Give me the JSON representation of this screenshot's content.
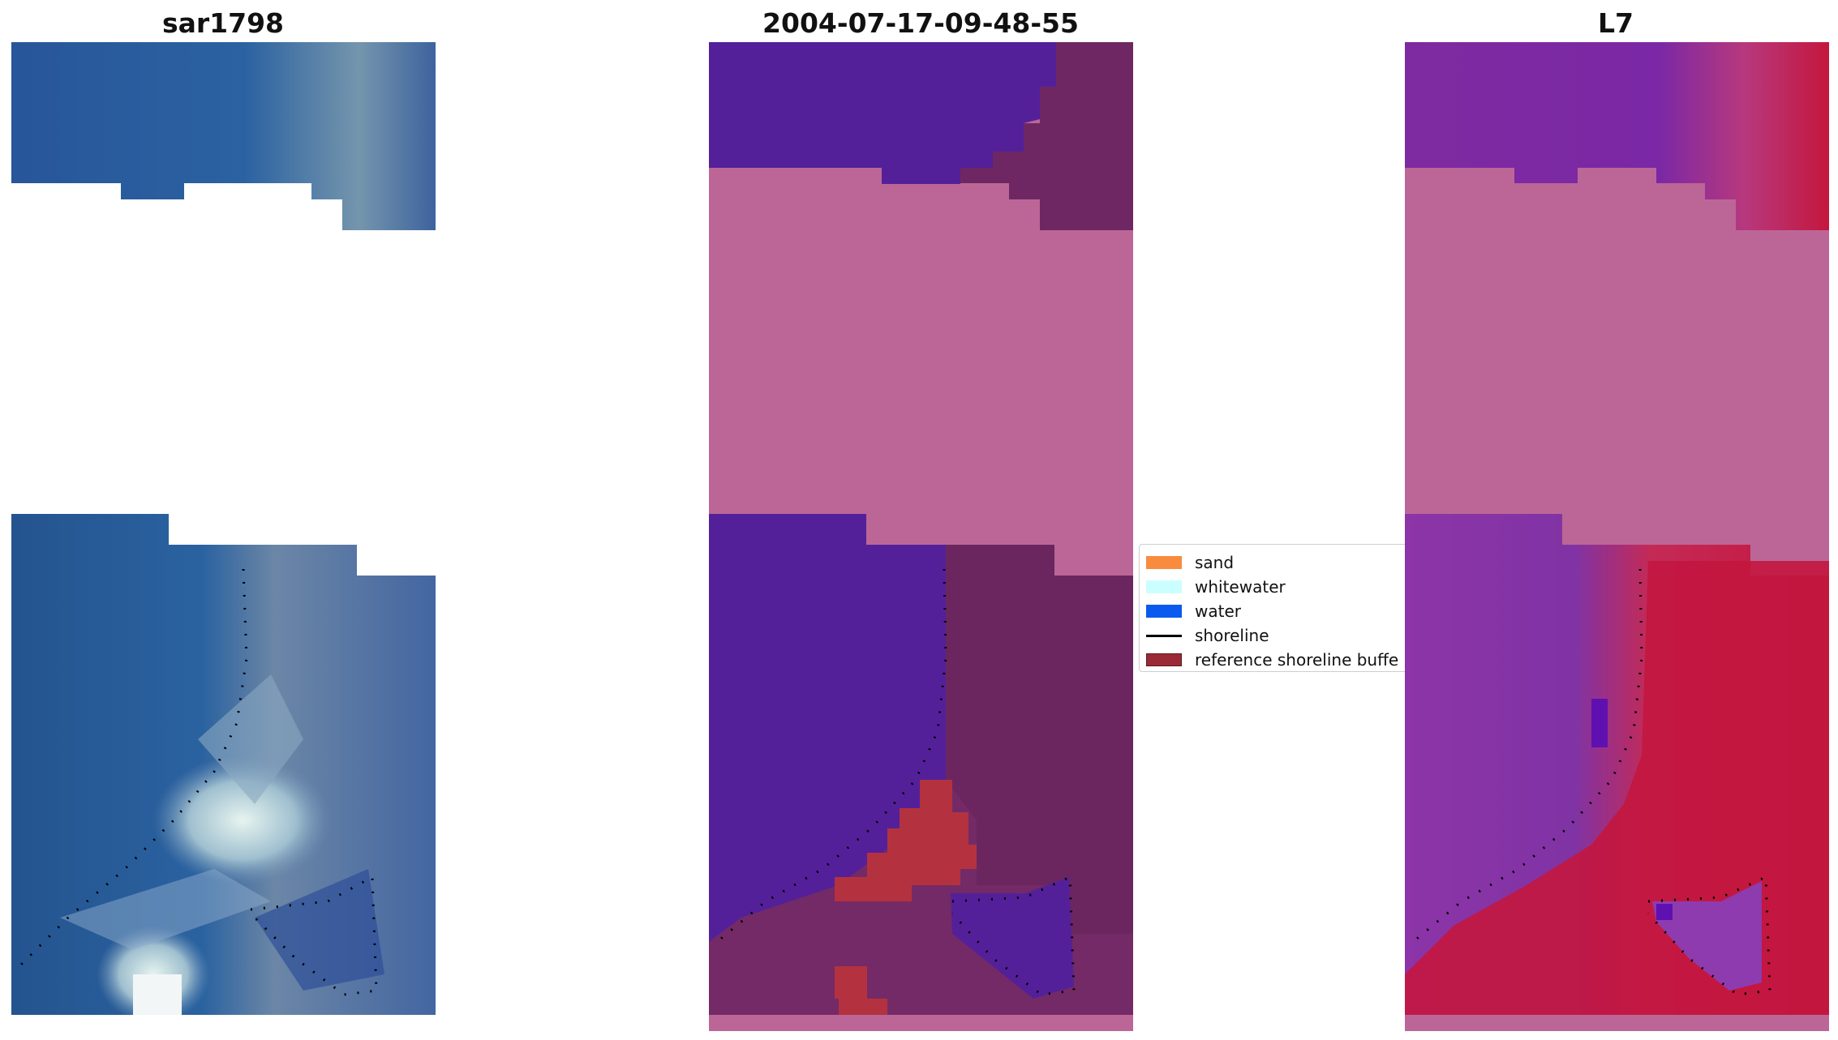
{
  "panels": [
    {
      "title": "sar1798"
    },
    {
      "title": "2004-07-17-09-48-55"
    },
    {
      "title": "L7"
    }
  ],
  "legend": {
    "items": [
      {
        "label": "sand",
        "color": "#f98b3f",
        "kind": "patch"
      },
      {
        "label": "whitewater",
        "color": "#cbffff",
        "kind": "patch"
      },
      {
        "label": "water",
        "color": "#0a5aef",
        "kind": "patch"
      },
      {
        "label": "shoreline",
        "color": "#000000",
        "kind": "line"
      },
      {
        "label": "reference shoreline buffe",
        "color": "#9a2a36",
        "kind": "patch"
      }
    ]
  },
  "colors": {
    "water_overlay": "#54209a",
    "land_overlay": "#6e2762",
    "nodata_overlay": "#bc6697",
    "buffer_overlay": "#b4323f",
    "rgb_water": "#2a5a97",
    "rgb_surf": "#e8f2f2",
    "l7_purple": "#7d2fa0",
    "l7_red": "#c2163f"
  }
}
